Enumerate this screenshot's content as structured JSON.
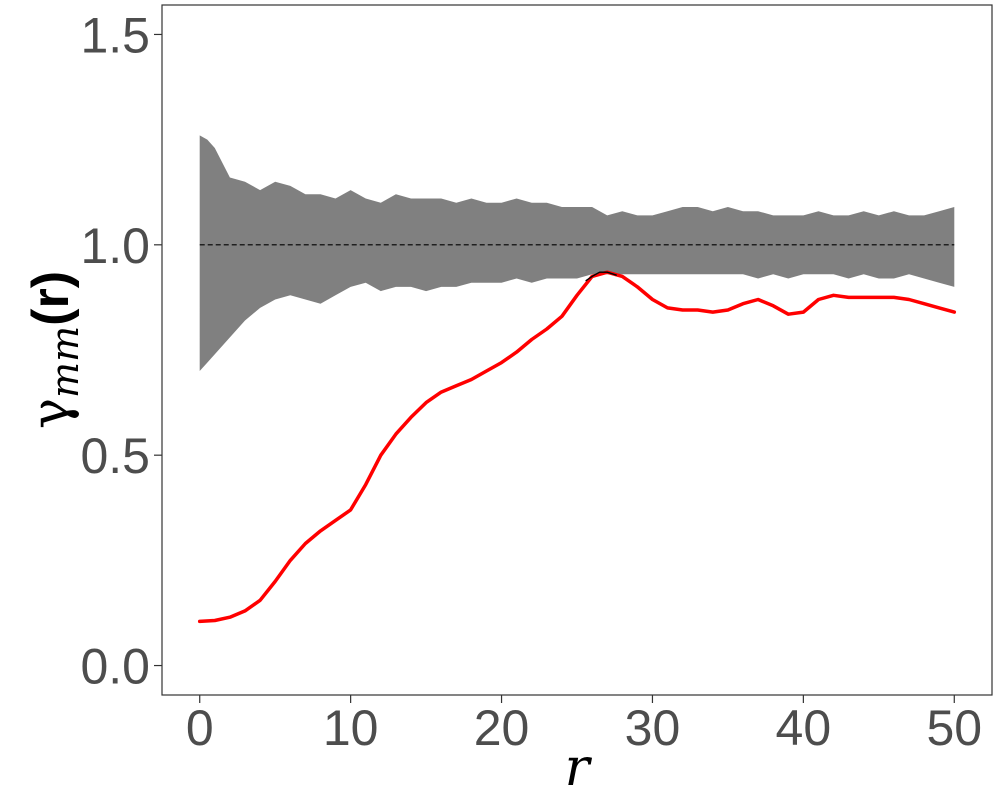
{
  "chart_data": {
    "type": "line",
    "xlabel": "r",
    "ylabel_parts": {
      "symbol": "γ",
      "subscript": "mm",
      "arg": "(r)"
    },
    "xlim": [
      -2.5,
      52.5
    ],
    "ylim": [
      -0.07,
      1.57
    ],
    "xticks": [
      0,
      10,
      20,
      30,
      40,
      50
    ],
    "xtick_labels": [
      "0",
      "10",
      "20",
      "30",
      "40",
      "50"
    ],
    "yticks": [
      0.0,
      0.5,
      1.0,
      1.5
    ],
    "ytick_labels": [
      "0.0",
      "0.5",
      "1.0",
      "1.5"
    ],
    "grid": false,
    "colors": {
      "envelope": "#808080",
      "observed": "#ff0000",
      "reference": "#000000",
      "axis": "#333333"
    },
    "reference_line": {
      "y": 1.0,
      "style": "dashed"
    },
    "envelope": {
      "x": [
        0,
        0.5,
        1,
        2,
        3,
        4,
        5,
        6,
        7,
        8,
        9,
        10,
        11,
        12,
        13,
        14,
        15,
        16,
        17,
        18,
        19,
        20,
        21,
        22,
        23,
        24,
        25,
        26,
        27,
        28,
        29,
        30,
        31,
        32,
        33,
        34,
        35,
        36,
        37,
        38,
        39,
        40,
        41,
        42,
        43,
        44,
        45,
        46,
        47,
        48,
        49,
        50
      ],
      "upper": [
        1.26,
        1.25,
        1.23,
        1.16,
        1.15,
        1.13,
        1.15,
        1.14,
        1.12,
        1.12,
        1.11,
        1.13,
        1.11,
        1.1,
        1.12,
        1.11,
        1.11,
        1.11,
        1.1,
        1.11,
        1.1,
        1.1,
        1.11,
        1.1,
        1.1,
        1.09,
        1.09,
        1.09,
        1.07,
        1.08,
        1.07,
        1.07,
        1.08,
        1.09,
        1.09,
        1.08,
        1.09,
        1.08,
        1.08,
        1.07,
        1.07,
        1.07,
        1.08,
        1.07,
        1.07,
        1.08,
        1.07,
        1.08,
        1.07,
        1.07,
        1.08,
        1.09
      ],
      "lower": [
        0.7,
        0.72,
        0.74,
        0.78,
        0.82,
        0.85,
        0.87,
        0.88,
        0.87,
        0.86,
        0.88,
        0.9,
        0.91,
        0.89,
        0.9,
        0.9,
        0.89,
        0.9,
        0.9,
        0.91,
        0.91,
        0.91,
        0.92,
        0.91,
        0.92,
        0.92,
        0.92,
        0.93,
        0.93,
        0.93,
        0.93,
        0.93,
        0.93,
        0.93,
        0.93,
        0.93,
        0.93,
        0.93,
        0.92,
        0.93,
        0.92,
        0.93,
        0.93,
        0.93,
        0.92,
        0.93,
        0.92,
        0.92,
        0.93,
        0.92,
        0.91,
        0.9
      ]
    },
    "series": [
      {
        "role": "observed",
        "x": [
          0,
          1,
          2,
          3,
          4,
          5,
          6,
          7,
          8,
          9,
          10,
          11,
          12,
          13,
          14,
          15,
          16,
          17,
          18,
          19,
          20,
          21,
          22,
          23,
          24,
          25,
          26,
          27,
          28,
          29,
          30,
          31,
          32,
          33,
          34,
          35,
          36,
          37,
          38,
          39,
          40,
          41,
          42,
          43,
          44,
          45,
          46,
          47,
          48,
          49,
          50
        ],
        "values": [
          0.105,
          0.107,
          0.115,
          0.13,
          0.155,
          0.2,
          0.25,
          0.29,
          0.32,
          0.345,
          0.37,
          0.43,
          0.5,
          0.55,
          0.59,
          0.625,
          0.65,
          0.665,
          0.68,
          0.7,
          0.72,
          0.745,
          0.775,
          0.8,
          0.83,
          0.88,
          0.925,
          0.935,
          0.925,
          0.9,
          0.87,
          0.85,
          0.845,
          0.845,
          0.84,
          0.845,
          0.86,
          0.87,
          0.855,
          0.835,
          0.84,
          0.87,
          0.88,
          0.875,
          0.875,
          0.875,
          0.875,
          0.87,
          0.86,
          0.85,
          0.84
        ]
      },
      {
        "role": "above-envelope segment",
        "x": [
          25.6,
          26,
          26.5,
          27,
          27.6
        ],
        "values": [
          0.915,
          0.925,
          0.935,
          0.935,
          0.928
        ]
      }
    ]
  }
}
